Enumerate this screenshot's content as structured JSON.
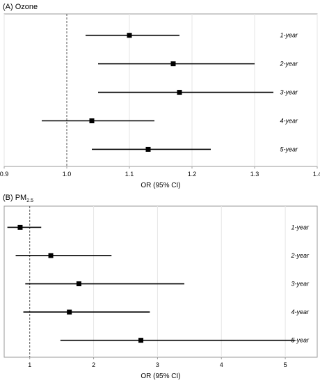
{
  "chart_data": [
    {
      "type": "forest",
      "title": "(A) Ozone",
      "xlabel": "OR (95% CI)",
      "xlim": [
        0.9,
        1.4
      ],
      "xticks": [
        "0.9",
        "1.0",
        "1.1",
        "1.2",
        "1.3",
        "1.4"
      ],
      "xtick_values": [
        0.9,
        1.0,
        1.1,
        1.2,
        1.3,
        1.4
      ],
      "reference_line": 1.0,
      "grid": true,
      "rows": [
        {
          "label": "1-year",
          "or": 1.1,
          "lower": 1.03,
          "upper": 1.18
        },
        {
          "label": "2-year",
          "or": 1.17,
          "lower": 1.05,
          "upper": 1.3
        },
        {
          "label": "3-year",
          "or": 1.18,
          "lower": 1.05,
          "upper": 1.33
        },
        {
          "label": "4-year",
          "or": 1.04,
          "lower": 0.96,
          "upper": 1.14
        },
        {
          "label": "5-year",
          "or": 1.13,
          "lower": 1.04,
          "upper": 1.23
        }
      ]
    },
    {
      "type": "forest",
      "title": "(B) PM",
      "title_subscript": "2.5",
      "xlabel": "OR (95% CI)",
      "xlim": [
        0.6,
        5.5
      ],
      "xticks": [
        "1",
        "2",
        "3",
        "4",
        "5"
      ],
      "xtick_values": [
        1,
        2,
        3,
        4,
        5
      ],
      "reference_line": 1,
      "grid": true,
      "rows": [
        {
          "label": "1-year",
          "or": 0.85,
          "lower": 0.65,
          "upper": 1.18
        },
        {
          "label": "2-year",
          "or": 1.33,
          "lower": 0.78,
          "upper": 2.28
        },
        {
          "label": "3-year",
          "or": 1.77,
          "lower": 0.93,
          "upper": 3.42
        },
        {
          "label": "4-year",
          "or": 1.62,
          "lower": 0.9,
          "upper": 2.88
        },
        {
          "label": "5-year",
          "or": 2.74,
          "lower": 1.48,
          "upper": 5.15
        }
      ]
    }
  ]
}
